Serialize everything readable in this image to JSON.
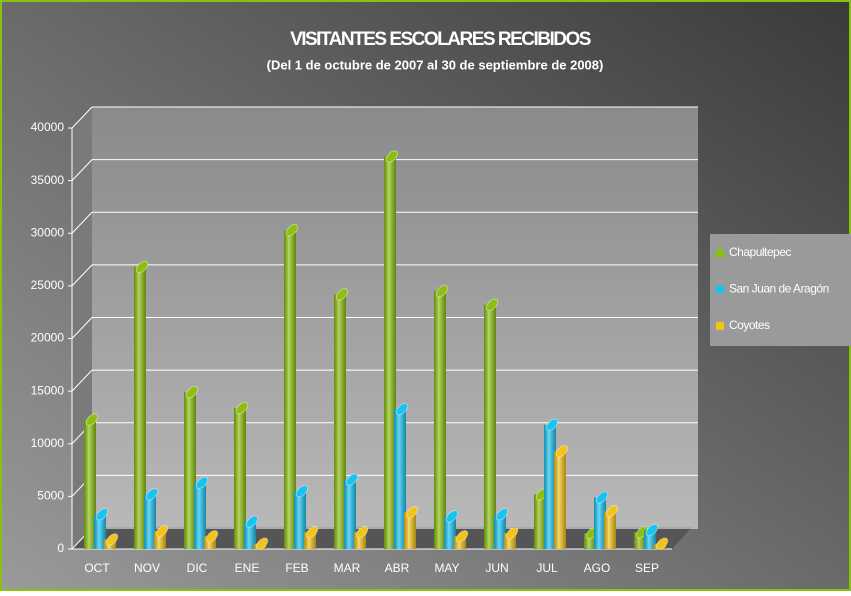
{
  "chart_data": {
    "type": "bar",
    "title": "VISITANTES ESCOLARES RECIBIDOS",
    "subtitle": "(Del 1 de octubre de 2007 al 30 de septiembre de 2008)",
    "categories": [
      "OCT",
      "NOV",
      "DIC",
      "ENE",
      "FEB",
      "MAR",
      "ABR",
      "MAY",
      "JUN",
      "JUL",
      "AGO",
      "SEP"
    ],
    "series": [
      {
        "name": "Chapultepec",
        "color": "#8cbf0f",
        "values": [
          12300,
          26800,
          14900,
          13400,
          30300,
          24200,
          37300,
          24500,
          23200,
          5200,
          1500,
          1600
        ]
      },
      {
        "name": "San Juan de Aragón",
        "color": "#19c3f0",
        "values": [
          3300,
          5200,
          6300,
          2600,
          5500,
          6600,
          13300,
          3100,
          3300,
          11800,
          4900,
          1800
        ]
      },
      {
        "name": "Coyotes",
        "color": "#f2c318",
        "values": [
          900,
          1700,
          1200,
          500,
          1600,
          1600,
          3500,
          1200,
          1500,
          9300,
          3600,
          500
        ]
      }
    ],
    "ylim": [
      0,
      40000
    ],
    "yticks": [
      0,
      5000,
      10000,
      15000,
      20000,
      25000,
      30000,
      35000,
      40000
    ],
    "grid": true,
    "legend": "right"
  }
}
